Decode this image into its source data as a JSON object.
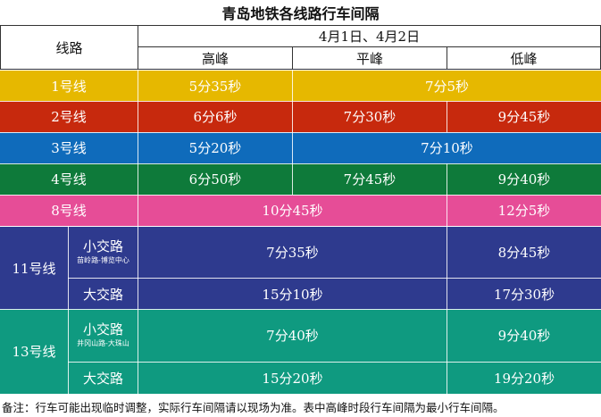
{
  "title": "青岛地铁各线路行车间隔",
  "header": {
    "line": "线路",
    "date": "4月1日、4月2日",
    "peak": "高峰",
    "flat": "平峰",
    "low": "低峰"
  },
  "colors": {
    "line1": "#e6b800",
    "line2": "#c7290d",
    "line3": "#0f6bbb",
    "line4": "#0e7a3a",
    "line8": "#e64d97",
    "line11": "#2e3a8e",
    "line13": "#0f9a80"
  },
  "rows": {
    "line1": {
      "name": "1号线",
      "peak": "5分35秒",
      "flat_low": "7分5秒"
    },
    "line2": {
      "name": "2号线",
      "peak": "6分6秒",
      "flat": "7分30秒",
      "low": "9分45秒"
    },
    "line3": {
      "name": "3号线",
      "peak": "5分20秒",
      "flat_low": "7分10秒"
    },
    "line4": {
      "name": "4号线",
      "peak": "6分50秒",
      "flat": "7分45秒",
      "low": "9分40秒"
    },
    "line8": {
      "name": "8号线",
      "peak_flat": "10分45秒",
      "low": "12分5秒"
    },
    "line11": {
      "name": "11号线",
      "small": {
        "name": "小交路",
        "route": "苗岭路-博览中心",
        "peak_flat": "7分35秒",
        "low": "8分45秒"
      },
      "large": {
        "name": "大交路",
        "peak_flat": "15分10秒",
        "low": "17分30秒"
      }
    },
    "line13": {
      "name": "13号线",
      "small": {
        "name": "小交路",
        "route": "井冈山路-大珠山",
        "peak_flat": "7分40秒",
        "low": "9分40秒"
      },
      "large": {
        "name": "大交路",
        "peak_flat": "15分20秒",
        "low": "19分20秒"
      }
    }
  },
  "note": "备注：行车可能出现临时调整，实际行车间隔请以现场为准。表中高峰时段行车间隔为最小行车间隔。"
}
